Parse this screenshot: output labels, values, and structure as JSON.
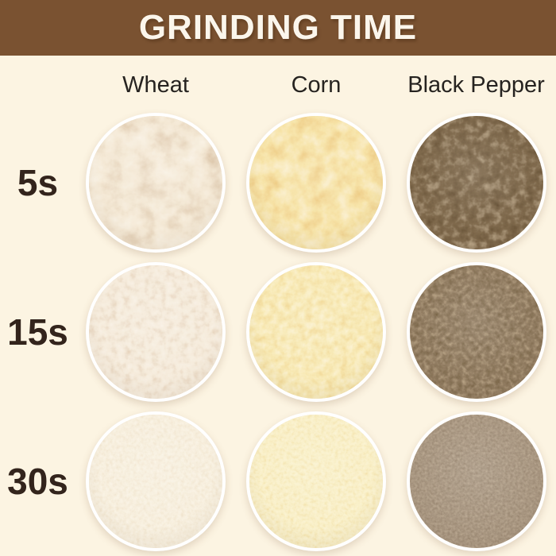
{
  "page": {
    "bg_color": "#fcf4e2"
  },
  "header": {
    "title": "GRINDING TIME",
    "bg_color": "#7a5231",
    "text_color": "#fbf6ec"
  },
  "columns": [
    "Wheat",
    "Corn",
    "Black Pepper"
  ],
  "rows": [
    "5s",
    "15s",
    "30s"
  ],
  "labels_color": "#33241c",
  "samples": [
    {
      "id": "wheat-5s",
      "column": "Wheat",
      "row": "5s",
      "texture": "coarse cracked grain",
      "colors": {
        "dark": "#a97e52",
        "mid": "#e6cda8",
        "light": "#fdf4e0"
      },
      "base_frequency": 0.045,
      "octaves": 4,
      "seed": 3
    },
    {
      "id": "corn-5s",
      "column": "Corn",
      "row": "5s",
      "texture": "coarse cracked grain",
      "colors": {
        "dark": "#cf7f22",
        "mid": "#eec665",
        "light": "#fbf0cd"
      },
      "base_frequency": 0.05,
      "octaves": 4,
      "seed": 2
    },
    {
      "id": "pepper-5s",
      "column": "Black Pepper",
      "row": "5s",
      "texture": "coarse cracked grain",
      "colors": {
        "dark": "#190e05",
        "mid": "#382614",
        "light": "#9a7950"
      },
      "base_frequency": 0.09,
      "octaves": 3,
      "seed": 6
    },
    {
      "id": "wheat-15s",
      "column": "Wheat",
      "row": "15s",
      "texture": "medium grind",
      "colors": {
        "dark": "#bd9268",
        "mid": "#e9d3b4",
        "light": "#f9ecd8"
      },
      "base_frequency": 0.11,
      "octaves": 3,
      "seed": 5
    },
    {
      "id": "corn-15s",
      "column": "Corn",
      "row": "15s",
      "texture": "medium grind",
      "colors": {
        "dark": "#d99c34",
        "mid": "#f0d177",
        "light": "#fbf0c4"
      },
      "base_frequency": 0.11,
      "octaves": 3,
      "seed": 9
    },
    {
      "id": "pepper-15s",
      "column": "Black Pepper",
      "row": "15s",
      "texture": "medium grind",
      "colors": {
        "dark": "#241708",
        "mid": "#4a3520",
        "light": "#93724a"
      },
      "base_frequency": 0.16,
      "octaves": 3,
      "seed": 12
    },
    {
      "id": "wheat-30s",
      "column": "Wheat",
      "row": "30s",
      "texture": "fine powder",
      "colors": {
        "dark": "#d8ba8e",
        "mid": "#eedcba",
        "light": "#faf0d8"
      },
      "base_frequency": 0.22,
      "octaves": 3,
      "seed": 8
    },
    {
      "id": "corn-30s",
      "column": "Corn",
      "row": "30s",
      "texture": "fine powder",
      "colors": {
        "dark": "#e0b455",
        "mid": "#f2dd92",
        "light": "#f8eebb"
      },
      "base_frequency": 0.22,
      "octaves": 3,
      "seed": 4
    },
    {
      "id": "pepper-30s",
      "column": "Black Pepper",
      "row": "30s",
      "texture": "fine powder",
      "colors": {
        "dark": "#44311f",
        "mid": "#66503a",
        "light": "#8f7455"
      },
      "base_frequency": 0.3,
      "octaves": 3,
      "seed": 14
    }
  ]
}
